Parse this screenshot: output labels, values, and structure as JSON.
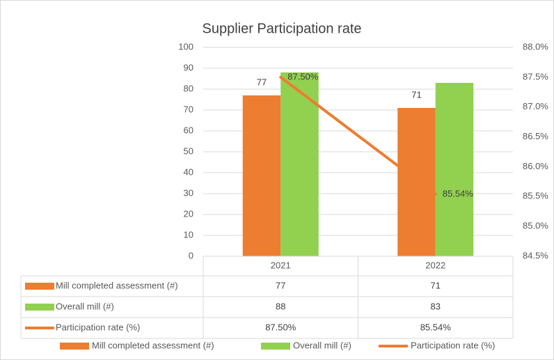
{
  "chart_data": {
    "type": "bar",
    "title": "Supplier Participation rate",
    "categories": [
      "2021",
      "2022"
    ],
    "series": [
      {
        "name": "Mill completed assessment (#)",
        "color": "#ed7d31",
        "values": [
          77,
          71
        ]
      },
      {
        "name": "Overall mill (#)",
        "color": "#92d050",
        "values": [
          88,
          83
        ]
      },
      {
        "name": "Participation rate (%)",
        "color": "#ed7d31",
        "type": "line",
        "axis": "y2",
        "values": [
          87.5,
          85.54
        ],
        "value_labels": [
          "87.50%",
          "85.54%"
        ]
      }
    ],
    "ylim": [
      0,
      100
    ],
    "yticks": [
      0,
      10,
      20,
      30,
      40,
      50,
      60,
      70,
      80,
      90,
      100
    ],
    "y2lim": [
      84.5,
      88
    ],
    "y2ticks": [
      {
        "value": 84.5,
        "label": "84.5%"
      },
      {
        "value": 85,
        "label": "85.0%"
      },
      {
        "value": 85.5,
        "label": "85.5%"
      },
      {
        "value": 86,
        "label": "86.0%"
      },
      {
        "value": 86.5,
        "label": "86.5%"
      },
      {
        "value": 87,
        "label": "87.0%"
      },
      {
        "value": 87.5,
        "label": "87.5%"
      },
      {
        "value": 88,
        "label": "88.0%"
      }
    ],
    "grid": true,
    "data_table": true,
    "legend": "bottom"
  }
}
